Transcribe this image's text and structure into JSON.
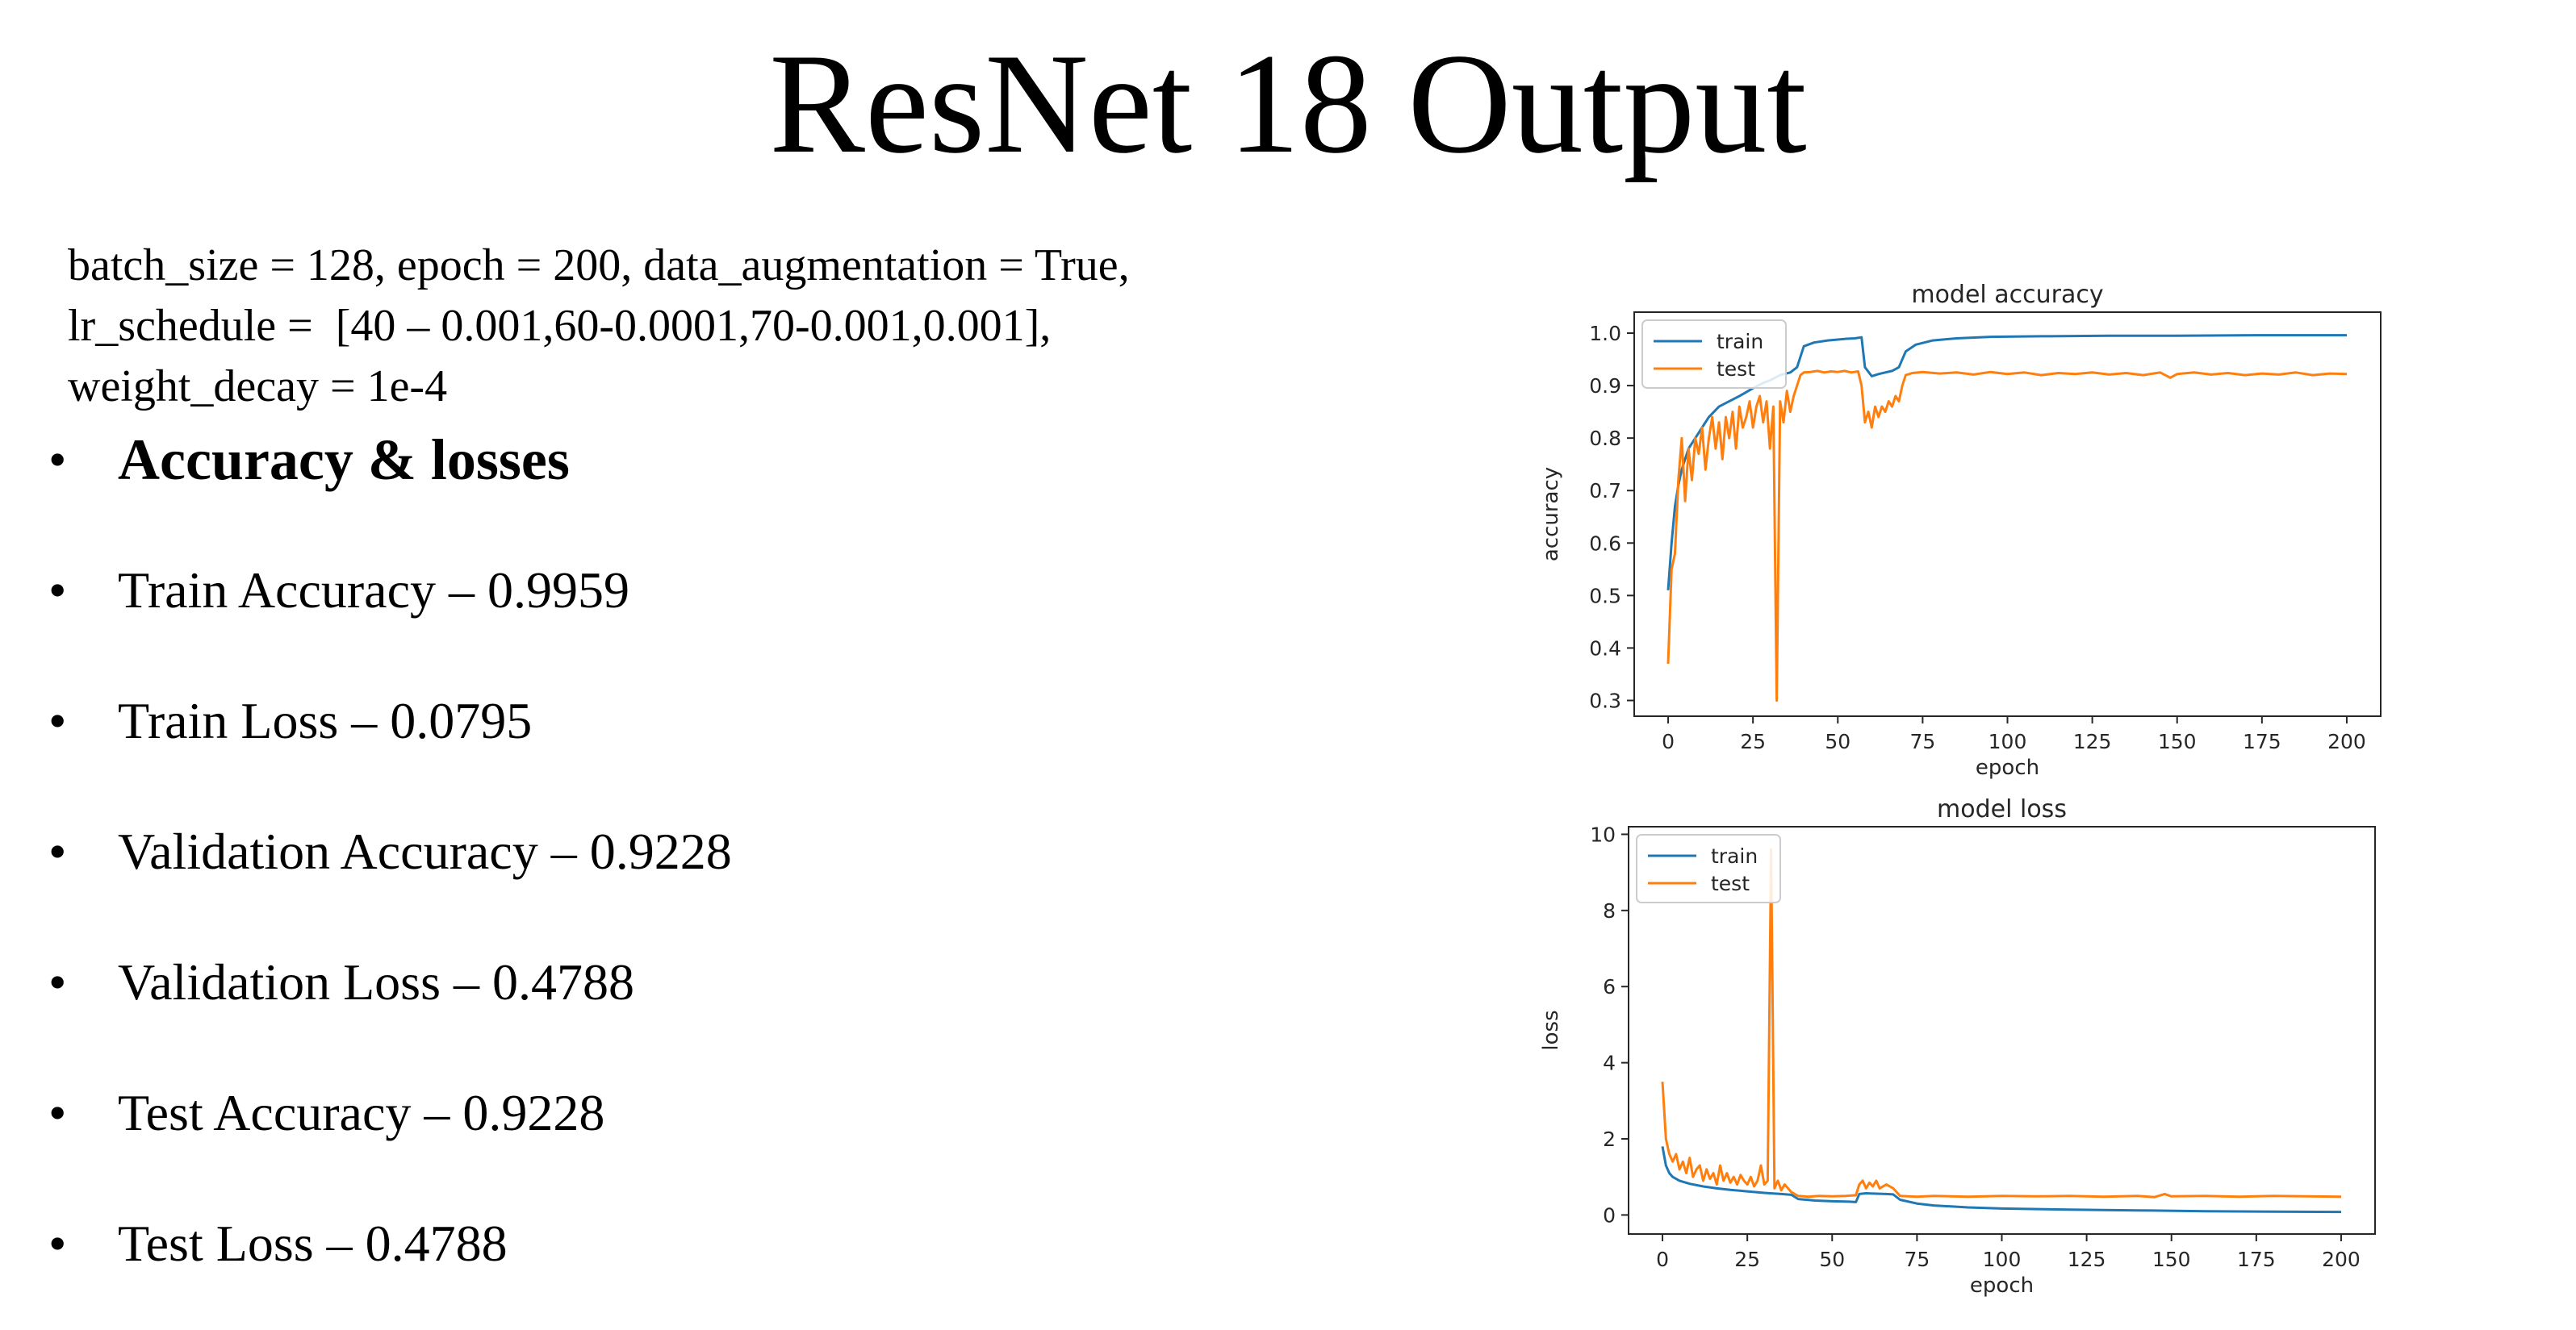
{
  "slide": {
    "title": "ResNet 18 Output",
    "params": [
      "batch_size = 128, epoch = 200, data_augmentation = True,",
      "lr_schedule =  [40 – 0.001,60-0.0001,70-0.001,0.001],",
      "weight_decay = 1e-4"
    ],
    "bullet_symbol": "•",
    "bullets": [
      "Accuracy & losses",
      "Train Accuracy – 0.9959",
      "Train Loss – 0.0795",
      "Validation Accuracy – 0.9228",
      "Validation Loss – 0.4788",
      "Test Accuracy – 0.9228",
      "Test Loss – 0.4788"
    ]
  },
  "colors": {
    "train": "#1f77b4",
    "test": "#ff7f0e",
    "text": "#000000",
    "axis": "#262626"
  },
  "chart_data": [
    {
      "type": "line",
      "title": "model accuracy",
      "xlabel": "epoch",
      "ylabel": "accuracy",
      "xlim": [
        -10,
        210
      ],
      "ylim": [
        0.27,
        1.04
      ],
      "xticks": [
        0,
        25,
        50,
        75,
        100,
        125,
        150,
        175,
        200
      ],
      "yticks": [
        0.3,
        0.4,
        0.5,
        0.6,
        0.7,
        0.8,
        0.9,
        1.0
      ],
      "ytick_labels": [
        "0.3",
        "0.4",
        "0.5",
        "0.6",
        "0.7",
        "0.8",
        "0.9",
        "1.0"
      ],
      "legend": "upper-left",
      "series": [
        {
          "name": "train",
          "points": [
            [
              0,
              0.51
            ],
            [
              1,
              0.6
            ],
            [
              2,
              0.67
            ],
            [
              3,
              0.71
            ],
            [
              4,
              0.74
            ],
            [
              5,
              0.76
            ],
            [
              6,
              0.78
            ],
            [
              8,
              0.8
            ],
            [
              10,
              0.82
            ],
            [
              12,
              0.84
            ],
            [
              15,
              0.86
            ],
            [
              18,
              0.87
            ],
            [
              21,
              0.88
            ],
            [
              25,
              0.895
            ],
            [
              28,
              0.905
            ],
            [
              30,
              0.91
            ],
            [
              33,
              0.92
            ],
            [
              36,
              0.925
            ],
            [
              38,
              0.935
            ],
            [
              40,
              0.975
            ],
            [
              43,
              0.982
            ],
            [
              47,
              0.986
            ],
            [
              52,
              0.989
            ],
            [
              55,
              0.99
            ],
            [
              57,
              0.992
            ],
            [
              58,
              0.935
            ],
            [
              60,
              0.918
            ],
            [
              62,
              0.922
            ],
            [
              64,
              0.925
            ],
            [
              66,
              0.928
            ],
            [
              68,
              0.935
            ],
            [
              70,
              0.965
            ],
            [
              73,
              0.978
            ],
            [
              78,
              0.986
            ],
            [
              85,
              0.99
            ],
            [
              95,
              0.993
            ],
            [
              110,
              0.994
            ],
            [
              130,
              0.995
            ],
            [
              150,
              0.995
            ],
            [
              175,
              0.996
            ],
            [
              200,
              0.996
            ]
          ]
        },
        {
          "name": "test",
          "points": [
            [
              0,
              0.37
            ],
            [
              1,
              0.55
            ],
            [
              2,
              0.58
            ],
            [
              3,
              0.72
            ],
            [
              4,
              0.8
            ],
            [
              5,
              0.68
            ],
            [
              6,
              0.78
            ],
            [
              7,
              0.72
            ],
            [
              8,
              0.8
            ],
            [
              9,
              0.77
            ],
            [
              10,
              0.82
            ],
            [
              11,
              0.74
            ],
            [
              12,
              0.8
            ],
            [
              13,
              0.84
            ],
            [
              14,
              0.78
            ],
            [
              15,
              0.83
            ],
            [
              16,
              0.76
            ],
            [
              17,
              0.84
            ],
            [
              18,
              0.8
            ],
            [
              19,
              0.85
            ],
            [
              20,
              0.78
            ],
            [
              21,
              0.86
            ],
            [
              22,
              0.82
            ],
            [
              23,
              0.84
            ],
            [
              24,
              0.87
            ],
            [
              25,
              0.82
            ],
            [
              26,
              0.86
            ],
            [
              27,
              0.88
            ],
            [
              28,
              0.83
            ],
            [
              29,
              0.87
            ],
            [
              30,
              0.78
            ],
            [
              31,
              0.86
            ],
            [
              32,
              0.3
            ],
            [
              33,
              0.87
            ],
            [
              34,
              0.83
            ],
            [
              35,
              0.89
            ],
            [
              36,
              0.85
            ],
            [
              37,
              0.88
            ],
            [
              38,
              0.9
            ],
            [
              39,
              0.92
            ],
            [
              40,
              0.925
            ],
            [
              42,
              0.926
            ],
            [
              44,
              0.928
            ],
            [
              46,
              0.925
            ],
            [
              48,
              0.927
            ],
            [
              50,
              0.926
            ],
            [
              52,
              0.928
            ],
            [
              54,
              0.925
            ],
            [
              56,
              0.927
            ],
            [
              57,
              0.9
            ],
            [
              58,
              0.83
            ],
            [
              59,
              0.85
            ],
            [
              60,
              0.82
            ],
            [
              61,
              0.86
            ],
            [
              62,
              0.84
            ],
            [
              63,
              0.86
            ],
            [
              64,
              0.85
            ],
            [
              65,
              0.87
            ],
            [
              66,
              0.86
            ],
            [
              67,
              0.88
            ],
            [
              68,
              0.87
            ],
            [
              69,
              0.9
            ],
            [
              70,
              0.92
            ],
            [
              72,
              0.924
            ],
            [
              75,
              0.926
            ],
            [
              80,
              0.923
            ],
            [
              85,
              0.925
            ],
            [
              90,
              0.921
            ],
            [
              95,
              0.926
            ],
            [
              100,
              0.922
            ],
            [
              105,
              0.925
            ],
            [
              110,
              0.92
            ],
            [
              115,
              0.924
            ],
            [
              120,
              0.922
            ],
            [
              125,
              0.925
            ],
            [
              130,
              0.921
            ],
            [
              135,
              0.924
            ],
            [
              140,
              0.92
            ],
            [
              145,
              0.925
            ],
            [
              148,
              0.915
            ],
            [
              150,
              0.922
            ],
            [
              155,
              0.925
            ],
            [
              160,
              0.921
            ],
            [
              165,
              0.924
            ],
            [
              170,
              0.92
            ],
            [
              175,
              0.923
            ],
            [
              180,
              0.921
            ],
            [
              185,
              0.925
            ],
            [
              190,
              0.92
            ],
            [
              195,
              0.923
            ],
            [
              200,
              0.922
            ]
          ]
        }
      ]
    },
    {
      "type": "line",
      "title": "model loss",
      "xlabel": "epoch",
      "ylabel": "loss",
      "xlim": [
        -10,
        210
      ],
      "ylim": [
        -0.5,
        10.2
      ],
      "xticks": [
        0,
        25,
        50,
        75,
        100,
        125,
        150,
        175,
        200
      ],
      "yticks": [
        0,
        2,
        4,
        6,
        8,
        10
      ],
      "ytick_labels": [
        "0",
        "2",
        "4",
        "6",
        "8",
        "10"
      ],
      "legend": "upper-left",
      "series": [
        {
          "name": "train",
          "points": [
            [
              0,
              1.8
            ],
            [
              1,
              1.3
            ],
            [
              2,
              1.1
            ],
            [
              3,
              1.0
            ],
            [
              5,
              0.9
            ],
            [
              8,
              0.82
            ],
            [
              12,
              0.75
            ],
            [
              16,
              0.7
            ],
            [
              20,
              0.66
            ],
            [
              25,
              0.62
            ],
            [
              30,
              0.58
            ],
            [
              35,
              0.55
            ],
            [
              38,
              0.53
            ],
            [
              40,
              0.42
            ],
            [
              45,
              0.38
            ],
            [
              50,
              0.36
            ],
            [
              55,
              0.35
            ],
            [
              57,
              0.34
            ],
            [
              58,
              0.55
            ],
            [
              60,
              0.57
            ],
            [
              63,
              0.56
            ],
            [
              66,
              0.55
            ],
            [
              68,
              0.54
            ],
            [
              70,
              0.4
            ],
            [
              75,
              0.3
            ],
            [
              80,
              0.25
            ],
            [
              90,
              0.2
            ],
            [
              100,
              0.17
            ],
            [
              120,
              0.14
            ],
            [
              140,
              0.12
            ],
            [
              160,
              0.1
            ],
            [
              180,
              0.09
            ],
            [
              200,
              0.08
            ]
          ]
        },
        {
          "name": "test",
          "points": [
            [
              0,
              3.5
            ],
            [
              1,
              2.0
            ],
            [
              2,
              1.6
            ],
            [
              3,
              1.4
            ],
            [
              4,
              1.6
            ],
            [
              5,
              1.2
            ],
            [
              6,
              1.4
            ],
            [
              7,
              1.1
            ],
            [
              8,
              1.5
            ],
            [
              9,
              1.0
            ],
            [
              10,
              1.2
            ],
            [
              11,
              1.3
            ],
            [
              12,
              0.9
            ],
            [
              13,
              1.2
            ],
            [
              14,
              0.95
            ],
            [
              15,
              1.1
            ],
            [
              16,
              0.8
            ],
            [
              17,
              1.3
            ],
            [
              18,
              0.9
            ],
            [
              19,
              1.1
            ],
            [
              20,
              0.85
            ],
            [
              21,
              1.0
            ],
            [
              22,
              0.8
            ],
            [
              23,
              1.05
            ],
            [
              24,
              0.9
            ],
            [
              25,
              0.8
            ],
            [
              26,
              1.0
            ],
            [
              27,
              0.75
            ],
            [
              28,
              0.9
            ],
            [
              29,
              1.3
            ],
            [
              30,
              0.8
            ],
            [
              31,
              0.9
            ],
            [
              32,
              9.6
            ],
            [
              33,
              0.7
            ],
            [
              34,
              0.9
            ],
            [
              35,
              0.65
            ],
            [
              36,
              0.8
            ],
            [
              37,
              0.7
            ],
            [
              38,
              0.6
            ],
            [
              40,
              0.5
            ],
            [
              43,
              0.48
            ],
            [
              46,
              0.5
            ],
            [
              50,
              0.49
            ],
            [
              54,
              0.5
            ],
            [
              57,
              0.52
            ],
            [
              58,
              0.8
            ],
            [
              59,
              0.9
            ],
            [
              60,
              0.7
            ],
            [
              61,
              0.85
            ],
            [
              62,
              0.75
            ],
            [
              63,
              0.9
            ],
            [
              64,
              0.7
            ],
            [
              66,
              0.8
            ],
            [
              68,
              0.7
            ],
            [
              70,
              0.5
            ],
            [
              75,
              0.48
            ],
            [
              80,
              0.5
            ],
            [
              90,
              0.48
            ],
            [
              100,
              0.5
            ],
            [
              110,
              0.49
            ],
            [
              120,
              0.5
            ],
            [
              130,
              0.48
            ],
            [
              140,
              0.5
            ],
            [
              145,
              0.47
            ],
            [
              148,
              0.55
            ],
            [
              150,
              0.49
            ],
            [
              160,
              0.5
            ],
            [
              170,
              0.48
            ],
            [
              180,
              0.5
            ],
            [
              190,
              0.49
            ],
            [
              200,
              0.48
            ]
          ]
        }
      ]
    }
  ]
}
